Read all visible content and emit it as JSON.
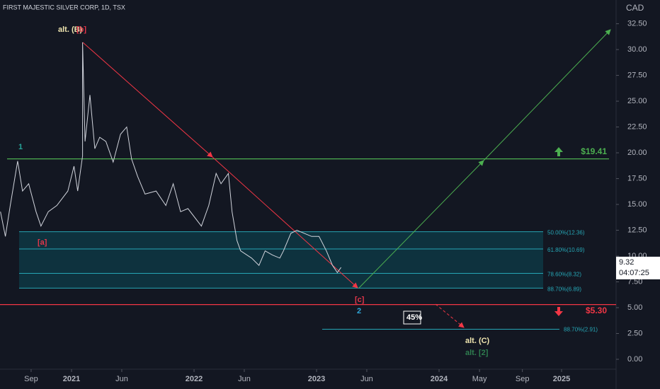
{
  "chart_data": {
    "type": "line",
    "title": "FIRST MAJESTIC SILVER CORP, 1D, TSX",
    "y_axis_label": "CAD",
    "x": [
      2020.42,
      2020.46,
      2020.5,
      2020.56,
      2020.6,
      2020.65,
      2020.71,
      2020.75,
      2020.81,
      2020.88,
      2020.97,
      2021.02,
      2021.05,
      2021.09,
      2021.09,
      2021.11,
      2021.15,
      2021.19,
      2021.23,
      2021.28,
      2021.34,
      2021.4,
      2021.45,
      2021.49,
      2021.54,
      2021.6,
      2021.69,
      2021.77,
      2021.83,
      2021.89,
      2021.95,
      2022.06,
      2022.12,
      2022.18,
      2022.22,
      2022.28,
      2022.31,
      2022.35,
      2022.38,
      2022.47,
      2022.53,
      2022.58,
      2022.64,
      2022.7,
      2022.73,
      2022.79,
      2022.84,
      2022.9,
      2022.96,
      2023.02,
      2023.08,
      2023.13,
      2023.17,
      2023.2
    ],
    "series": [
      {
        "color": "#d1d4dc",
        "values": [
          14.3,
          11.9,
          14.9,
          19.2,
          16.3,
          17,
          14.3,
          12.9,
          14.3,
          14.9,
          16.3,
          18.7,
          16.3,
          19.7,
          30.7,
          21.1,
          25.6,
          20.4,
          21.5,
          21.1,
          19.1,
          21.8,
          22.5,
          19.4,
          17.7,
          16,
          16.3,
          14.9,
          17,
          14.3,
          14.6,
          12.9,
          14.9,
          18,
          17,
          18,
          14.3,
          11.5,
          10.5,
          9.8,
          9.1,
          10.5,
          10.1,
          9.8,
          10.5,
          12.2,
          12.5,
          12.2,
          11.9,
          11.9,
          10.5,
          9.1,
          8.4,
          8.9
        ]
      }
    ],
    "xlim": [
      2020.416,
      2025.445
    ],
    "xticks": [
      {
        "value": 2020.67,
        "label": "Sep"
      },
      {
        "value": 2021,
        "label": "2021"
      },
      {
        "value": 2021.41,
        "label": "Jun"
      },
      {
        "value": 2022,
        "label": "2022"
      },
      {
        "value": 2022.41,
        "label": "Jun"
      },
      {
        "value": 2023,
        "label": "2023"
      },
      {
        "value": 2023.41,
        "label": "Jun"
      },
      {
        "value": 2024,
        "label": "2024"
      },
      {
        "value": 2024.33,
        "label": "May"
      },
      {
        "value": 2024.68,
        "label": "Sep"
      },
      {
        "value": 2025,
        "label": "2025"
      }
    ],
    "ylim": [
      0,
      34.8
    ],
    "yticks": [
      {
        "value": 0,
        "label": "0.00"
      },
      {
        "value": 2.5,
        "label": "2.50"
      },
      {
        "value": 5,
        "label": "5.00"
      },
      {
        "value": 7.5,
        "label": "7.50"
      },
      {
        "value": 10,
        "label": "10.00"
      },
      {
        "value": 12.5,
        "label": "12.50"
      },
      {
        "value": 15,
        "label": "15.00"
      },
      {
        "value": 17.5,
        "label": "17.50"
      },
      {
        "value": 20,
        "label": "20.00"
      },
      {
        "value": 22.5,
        "label": "22.50"
      },
      {
        "value": 25,
        "label": "25.00"
      },
      {
        "value": 27.5,
        "label": "27.50"
      },
      {
        "value": 30,
        "label": "30.00"
      },
      {
        "value": 32.5,
        "label": "32.50"
      }
    ],
    "grid": false,
    "fib_levels": [
      {
        "value": 12.36,
        "label": "50.00%(12.36)"
      },
      {
        "value": 10.69,
        "label": "61.80%(10.69)"
      },
      {
        "value": 8.32,
        "label": "78.60%(8.32)"
      },
      {
        "value": 6.89,
        "label": "88.70%(6.89)"
      }
    ],
    "fib_extension": {
      "value": 2.91,
      "label": "88.70%(2.91)"
    },
    "levels": [
      {
        "value": 19.41,
        "label": "$19.41",
        "color": "#4caf50"
      },
      {
        "value": 5.3,
        "label": "$5.30",
        "color": "#f23645"
      }
    ],
    "last_price": {
      "value": 9.32,
      "countdown": "04:07:25"
    },
    "annotations": [
      "alt. (B)",
      "[b]",
      "1",
      "[a]",
      "[c]",
      "2",
      "45%",
      "alt. (C)",
      "alt. [2]"
    ]
  }
}
